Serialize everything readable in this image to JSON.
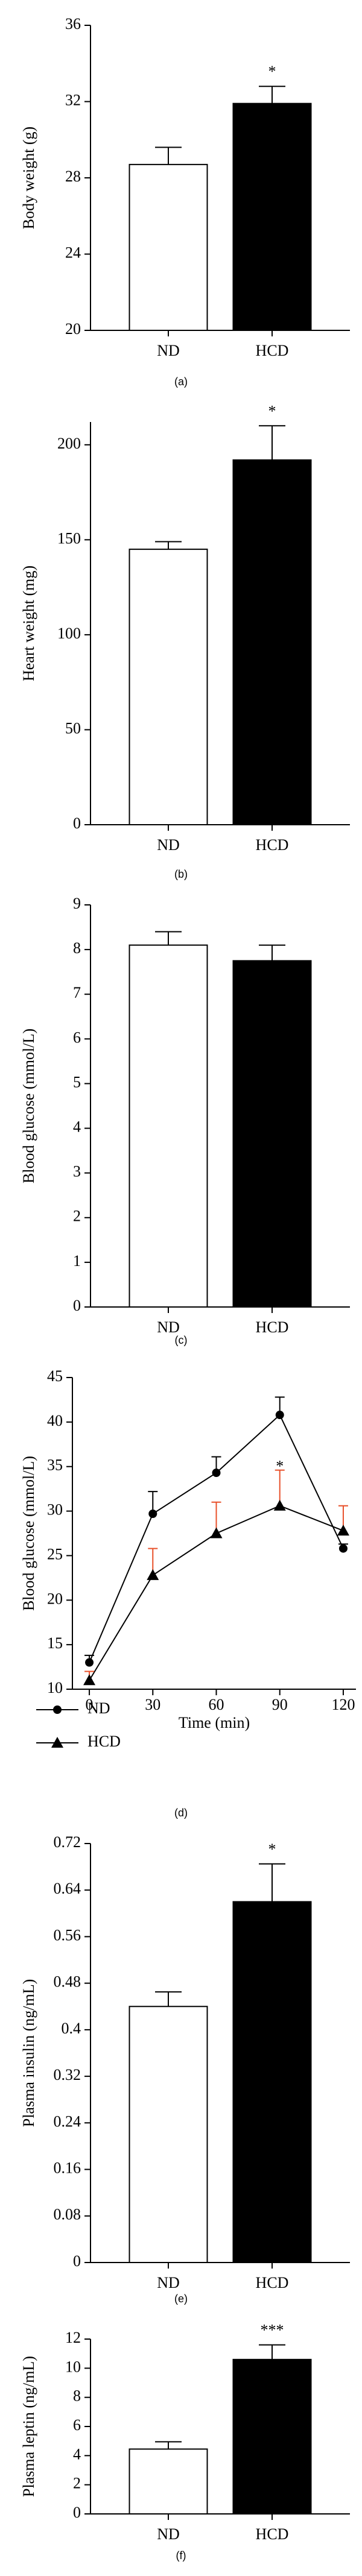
{
  "chart_data": [
    {
      "type": "bar",
      "caption": "(a)",
      "ylabel": "Body weight (g)",
      "categories": [
        "ND",
        "HCD"
      ],
      "values": [
        28.7,
        31.9
      ],
      "errors": [
        0.9,
        0.9
      ],
      "colors": [
        "#ffffff",
        "#000000"
      ],
      "ylim": [
        20,
        36
      ],
      "yticks": [
        20,
        24,
        28,
        32,
        36
      ],
      "annotations": [
        {
          "text": "*",
          "x": "HCD"
        }
      ]
    },
    {
      "type": "bar",
      "caption": "(b)",
      "ylabel": "Heart weight (mg)",
      "categories": [
        "ND",
        "HCD"
      ],
      "values": [
        145,
        192
      ],
      "errors": [
        4,
        18
      ],
      "colors": [
        "#ffffff",
        "#000000"
      ],
      "ylim": [
        0,
        212
      ],
      "yticks": [
        0,
        50,
        100,
        150,
        200
      ],
      "annotations": [
        {
          "text": "*",
          "x": "HCD"
        }
      ]
    },
    {
      "type": "bar",
      "caption": "(c)",
      "ylabel": "Blood glucose (mmol/L)",
      "categories": [
        "ND",
        "HCD"
      ],
      "values": [
        8.1,
        7.75
      ],
      "errors": [
        0.3,
        0.35
      ],
      "colors": [
        "#ffffff",
        "#000000"
      ],
      "ylim": [
        0,
        9
      ],
      "yticks": [
        0,
        1,
        2,
        3,
        4,
        5,
        6,
        7,
        8,
        9
      ]
    },
    {
      "type": "line",
      "caption": "(d)",
      "xlabel": "Time (min)",
      "ylabel": "Blood glucose (mmol/L)",
      "x": [
        0,
        30,
        60,
        90,
        120
      ],
      "xlim": [
        -8,
        126
      ],
      "xticks": [
        0,
        30,
        60,
        90,
        120
      ],
      "ylim": [
        10,
        45
      ],
      "yticks": [
        10,
        15,
        20,
        25,
        30,
        35,
        40,
        45
      ],
      "series": [
        {
          "name": "ND",
          "color": "#000000",
          "marker": "circle",
          "error_color": "#000000",
          "values": [
            13,
            29.7,
            34.3,
            40.8,
            25.8
          ],
          "errors": [
            0.8,
            2.5,
            1.8,
            2,
            0.5
          ]
        },
        {
          "name": "HCD",
          "color": "#000000",
          "marker": "triangle",
          "error_color": "#e8502a",
          "values": [
            11,
            22.8,
            27.5,
            30.6,
            27.8
          ],
          "errors": [
            1,
            3,
            3.5,
            4,
            2.8
          ]
        }
      ],
      "annotations": [
        {
          "text": "*",
          "x": 90
        }
      ]
    },
    {
      "type": "bar",
      "caption": "(e)",
      "ylabel": "Plasma insulin (ng/mL)",
      "categories": [
        "ND",
        "HCD"
      ],
      "values": [
        0.44,
        0.62
      ],
      "errors": [
        0.025,
        0.065
      ],
      "colors": [
        "#ffffff",
        "#000000"
      ],
      "ylim": [
        0,
        0.72
      ],
      "yticks": [
        0,
        0.08,
        0.16,
        0.24,
        0.32,
        0.4,
        0.48,
        0.56,
        0.64,
        0.72
      ],
      "annotations": [
        {
          "text": "*",
          "x": "HCD"
        }
      ]
    },
    {
      "type": "bar",
      "caption": "(f)",
      "ylabel": "Plasma leptin (ng/mL)",
      "categories": [
        "ND",
        "HCD"
      ],
      "values": [
        4.45,
        10.6
      ],
      "errors": [
        0.5,
        1.0
      ],
      "colors": [
        "#ffffff",
        "#000000"
      ],
      "ylim": [
        0,
        12
      ],
      "yticks": [
        0,
        2,
        4,
        6,
        8,
        10,
        12
      ],
      "annotations": [
        {
          "text": "***",
          "x": "HCD"
        }
      ]
    }
  ]
}
